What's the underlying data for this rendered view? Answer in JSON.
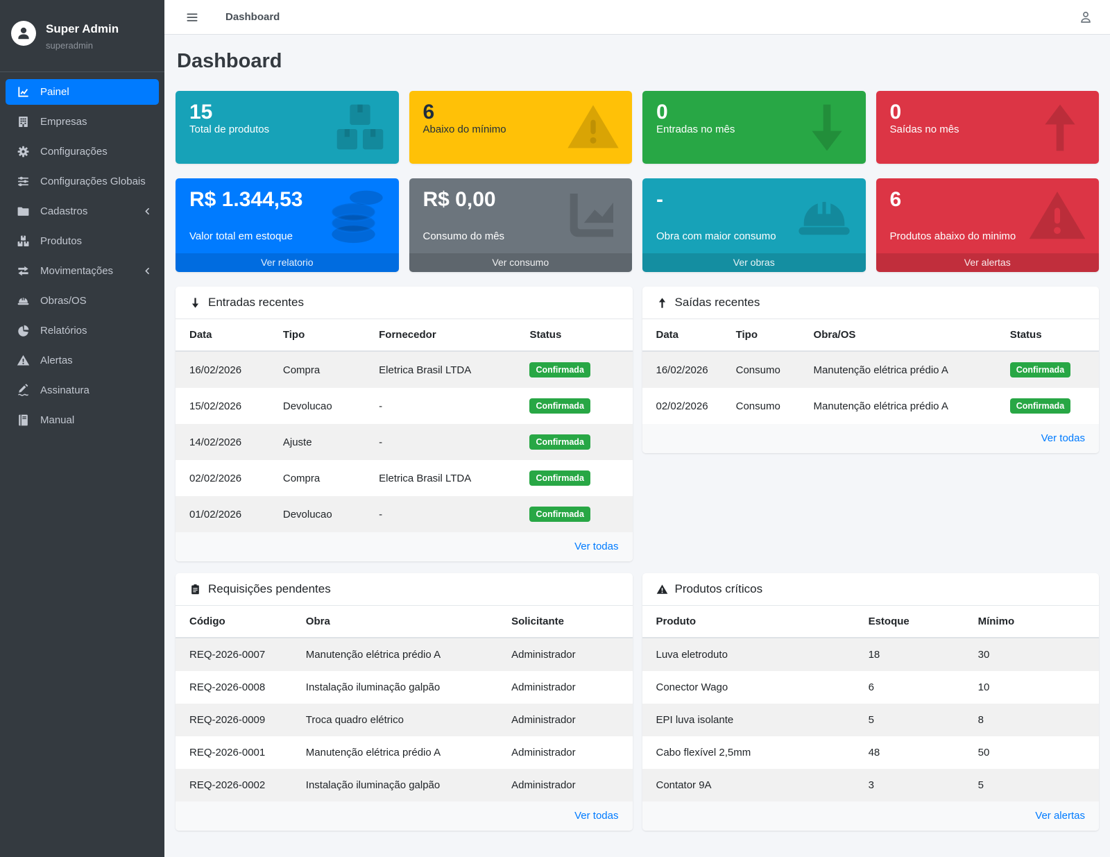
{
  "topbar": {
    "breadcrumb": "Dashboard"
  },
  "sidebar": {
    "user": {
      "name": "Super Admin",
      "username": "superadmin"
    },
    "items": [
      {
        "label": "Painel",
        "icon": "chart-line-icon",
        "active": true,
        "chevron": false
      },
      {
        "label": "Empresas",
        "icon": "building-icon",
        "active": false,
        "chevron": false
      },
      {
        "label": "Configurações",
        "icon": "gear-icon",
        "active": false,
        "chevron": false
      },
      {
        "label": "Configurações Globais",
        "icon": "sliders-icon",
        "active": false,
        "chevron": false
      },
      {
        "label": "Cadastros",
        "icon": "folder-icon",
        "active": false,
        "chevron": true
      },
      {
        "label": "Produtos",
        "icon": "boxes-icon",
        "active": false,
        "chevron": false
      },
      {
        "label": "Movimentações",
        "icon": "exchange-icon",
        "active": false,
        "chevron": true
      },
      {
        "label": "Obras/OS",
        "icon": "hard-hat-icon",
        "active": false,
        "chevron": false
      },
      {
        "label": "Relatórios",
        "icon": "pie-chart-icon",
        "active": false,
        "chevron": false
      },
      {
        "label": "Alertas",
        "icon": "warning-icon",
        "active": false,
        "chevron": false
      },
      {
        "label": "Assinatura",
        "icon": "signature-icon",
        "active": false,
        "chevron": false
      },
      {
        "label": "Manual",
        "icon": "book-icon",
        "active": false,
        "chevron": false
      }
    ]
  },
  "page": {
    "title": "Dashboard"
  },
  "stat_cards": [
    {
      "value": "15",
      "label": "Total de produtos",
      "color": "#17a2b8",
      "dark_text": false,
      "icon": "boxes-icon"
    },
    {
      "value": "6",
      "label": "Abaixo do mínimo",
      "color": "#ffc107",
      "dark_text": true,
      "icon": "warning-icon"
    },
    {
      "value": "0",
      "label": "Entradas no mês",
      "color": "#28a745",
      "dark_text": false,
      "icon": "arrow-down-icon"
    },
    {
      "value": "0",
      "label": "Saídas no mês",
      "color": "#dc3545",
      "dark_text": false,
      "icon": "arrow-up-icon"
    }
  ],
  "link_cards": [
    {
      "value": "R$ 1.344,53",
      "label": "Valor total em estoque",
      "link_label": "Ver relatorio",
      "color": "#007bff",
      "icon": "coins-icon"
    },
    {
      "value": "R$ 0,00",
      "label": "Consumo do mês",
      "link_label": "Ver consumo",
      "color": "#6c757d",
      "icon": "area-chart-icon"
    },
    {
      "value": "-",
      "label": "Obra com maior consumo",
      "link_label": "Ver obras",
      "color": "#17a2b8",
      "icon": "hard-hat-icon"
    },
    {
      "value": "6",
      "label": "Produtos abaixo do minimo",
      "link_label": "Ver alertas",
      "color": "#dc3545",
      "icon": "warning-icon"
    }
  ],
  "panels": {
    "entradas_recentes": {
      "title": "Entradas recentes",
      "icon": "arrow-down-icon",
      "columns": [
        "Data",
        "Tipo",
        "Fornecedor",
        "Status"
      ],
      "rows": [
        [
          "16/02/2026",
          "Compra",
          "Eletrica Brasil LTDA",
          "Confirmada"
        ],
        [
          "15/02/2026",
          "Devolucao",
          "-",
          "Confirmada"
        ],
        [
          "14/02/2026",
          "Ajuste",
          "-",
          "Confirmada"
        ],
        [
          "02/02/2026",
          "Compra",
          "Eletrica Brasil LTDA",
          "Confirmada"
        ],
        [
          "01/02/2026",
          "Devolucao",
          "-",
          "Confirmada"
        ]
      ],
      "footer_link": "Ver todas"
    },
    "saidas_recentes": {
      "title": "Saídas recentes",
      "icon": "arrow-up-icon",
      "columns": [
        "Data",
        "Tipo",
        "Obra/OS",
        "Status"
      ],
      "rows": [
        [
          "16/02/2026",
          "Consumo",
          "Manutenção elétrica prédio A",
          "Confirmada"
        ],
        [
          "02/02/2026",
          "Consumo",
          "Manutenção elétrica prédio A",
          "Confirmada"
        ]
      ],
      "footer_link": "Ver todas"
    },
    "requisicoes_pendentes": {
      "title": "Requisições pendentes",
      "icon": "clipboard-icon",
      "columns": [
        "Código",
        "Obra",
        "Solicitante"
      ],
      "rows": [
        [
          "REQ-2026-0007",
          "Manutenção elétrica prédio A",
          "Administrador"
        ],
        [
          "REQ-2026-0008",
          "Instalação iluminação galpão",
          "Administrador"
        ],
        [
          "REQ-2026-0009",
          "Troca quadro elétrico",
          "Administrador"
        ],
        [
          "REQ-2026-0001",
          "Manutenção elétrica prédio A",
          "Administrador"
        ],
        [
          "REQ-2026-0002",
          "Instalação iluminação galpão",
          "Administrador"
        ]
      ],
      "footer_link": "Ver todas"
    },
    "produtos_criticos": {
      "title": "Produtos críticos",
      "icon": "warning-icon",
      "columns": [
        "Produto",
        "Estoque",
        "Mínimo"
      ],
      "rows": [
        [
          "Luva eletroduto",
          "18",
          "30"
        ],
        [
          "Conector Wago",
          "6",
          "10"
        ],
        [
          "EPI luva isolante",
          "5",
          "8"
        ],
        [
          "Cabo flexível 2,5mm",
          "48",
          "50"
        ],
        [
          "Contator 9A",
          "3",
          "5"
        ]
      ],
      "footer_link": "Ver alertas"
    }
  },
  "colors": {
    "accent": "#007bff",
    "badge_confirmada": "#28a745",
    "sidebar_bg": "#343a40",
    "page_bg": "#f4f6f9"
  }
}
